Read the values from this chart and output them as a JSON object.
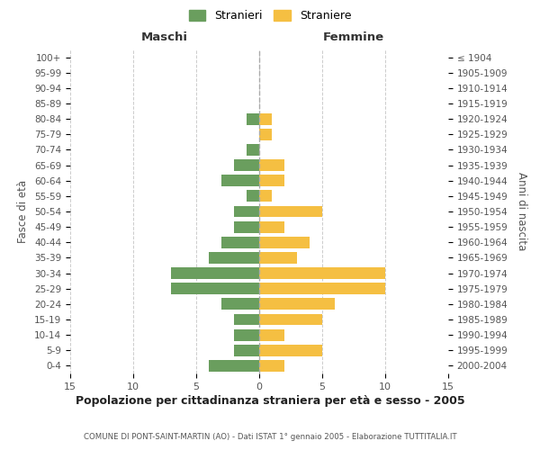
{
  "age_groups": [
    "0-4",
    "5-9",
    "10-14",
    "15-19",
    "20-24",
    "25-29",
    "30-34",
    "35-39",
    "40-44",
    "45-49",
    "50-54",
    "55-59",
    "60-64",
    "65-69",
    "70-74",
    "75-79",
    "80-84",
    "85-89",
    "90-94",
    "95-99",
    "100+"
  ],
  "birth_years": [
    "2000-2004",
    "1995-1999",
    "1990-1994",
    "1985-1989",
    "1980-1984",
    "1975-1979",
    "1970-1974",
    "1965-1969",
    "1960-1964",
    "1955-1959",
    "1950-1954",
    "1945-1949",
    "1940-1944",
    "1935-1939",
    "1930-1934",
    "1925-1929",
    "1920-1924",
    "1915-1919",
    "1910-1914",
    "1905-1909",
    "≤ 1904"
  ],
  "males": [
    4,
    2,
    2,
    2,
    3,
    7,
    7,
    4,
    3,
    2,
    2,
    1,
    3,
    2,
    1,
    0,
    1,
    0,
    0,
    0,
    0
  ],
  "females": [
    2,
    5,
    2,
    5,
    6,
    10,
    10,
    3,
    4,
    2,
    5,
    1,
    2,
    2,
    0,
    1,
    1,
    0,
    0,
    0,
    0
  ],
  "male_color": "#6a9e5e",
  "female_color": "#f5bf42",
  "title": "Popolazione per cittadinanza straniera per età e sesso - 2005",
  "subtitle": "COMUNE DI PONT-SAINT-MARTIN (AO) - Dati ISTAT 1° gennaio 2005 - Elaborazione TUTTITALIA.IT",
  "xlabel_left": "Maschi",
  "xlabel_right": "Femmine",
  "ylabel_left": "Fasce di età",
  "ylabel_right": "Anni di nascita",
  "legend_male": "Stranieri",
  "legend_female": "Straniere",
  "xlim": 15,
  "background_color": "#ffffff",
  "grid_color": "#cccccc"
}
